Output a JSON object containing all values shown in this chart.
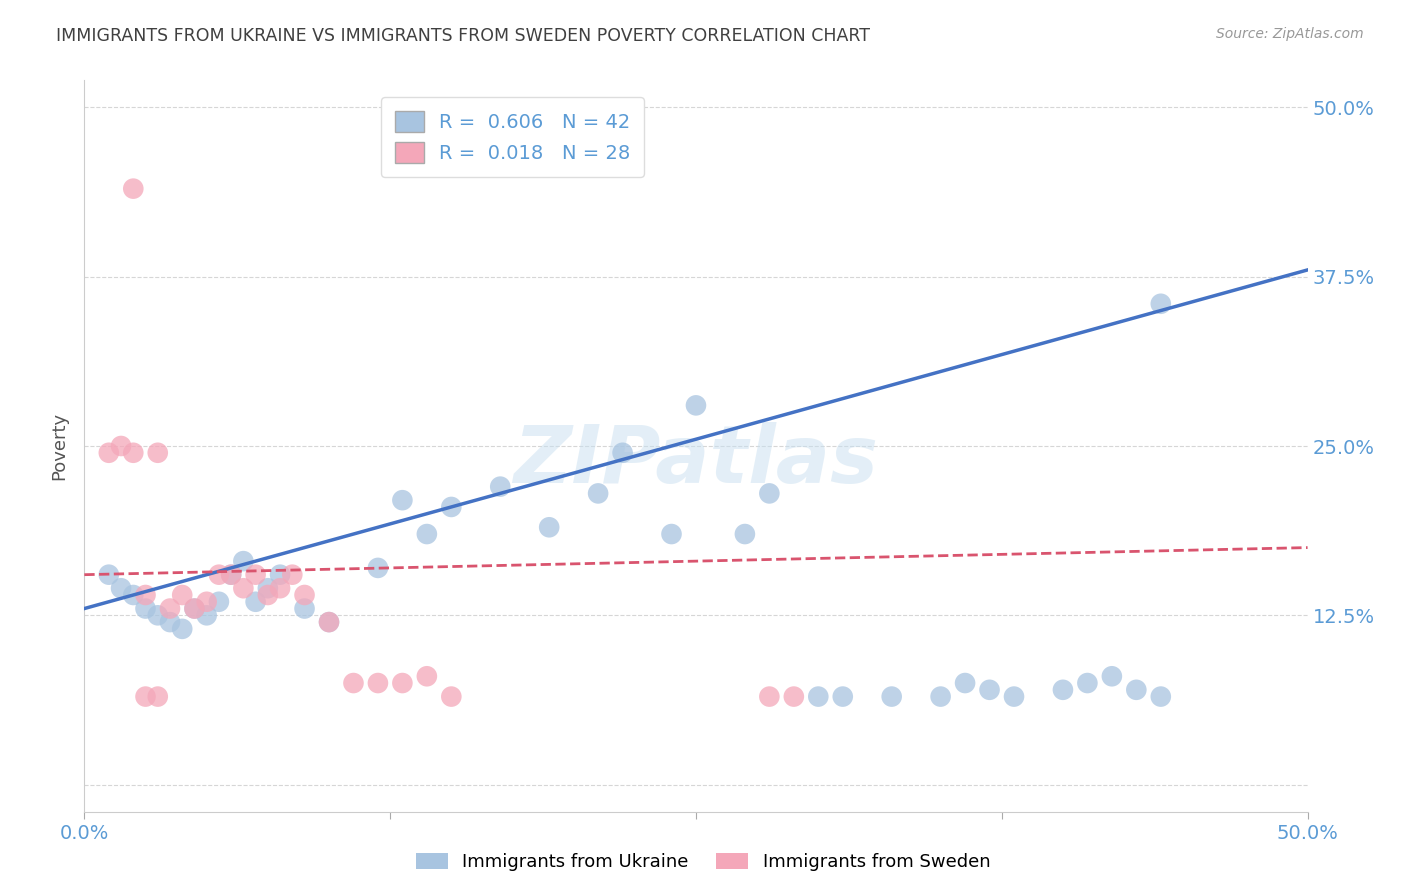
{
  "title": "IMMIGRANTS FROM UKRAINE VS IMMIGRANTS FROM SWEDEN POVERTY CORRELATION CHART",
  "source": "Source: ZipAtlas.com",
  "ylabel": "Poverty",
  "ukraine_color": "#a8c4e0",
  "ukraine_color_dark": "#4472c4",
  "sweden_color": "#f4a7b9",
  "sweden_color_dark": "#d9546e",
  "ukraine_R": 0.606,
  "ukraine_N": 42,
  "sweden_R": 0.018,
  "sweden_N": 28,
  "ukraine_line_x0": 0.0,
  "ukraine_line_y0": 0.13,
  "ukraine_line_x1": 0.5,
  "ukraine_line_y1": 0.38,
  "sweden_line_x0": 0.0,
  "sweden_line_y0": 0.155,
  "sweden_line_x1": 0.5,
  "sweden_line_y1": 0.175,
  "ukraine_x": [
    0.44,
    0.01,
    0.015,
    0.02,
    0.025,
    0.03,
    0.035,
    0.04,
    0.045,
    0.05,
    0.055,
    0.06,
    0.065,
    0.07,
    0.075,
    0.08,
    0.09,
    0.1,
    0.12,
    0.13,
    0.14,
    0.15,
    0.17,
    0.19,
    0.21,
    0.22,
    0.24,
    0.25,
    0.27,
    0.28,
    0.3,
    0.31,
    0.33,
    0.35,
    0.36,
    0.37,
    0.38,
    0.4,
    0.41,
    0.42,
    0.43,
    0.44
  ],
  "ukraine_y": [
    0.355,
    0.155,
    0.145,
    0.14,
    0.13,
    0.125,
    0.12,
    0.115,
    0.13,
    0.125,
    0.135,
    0.155,
    0.165,
    0.135,
    0.145,
    0.155,
    0.13,
    0.12,
    0.16,
    0.21,
    0.185,
    0.205,
    0.22,
    0.19,
    0.215,
    0.245,
    0.185,
    0.28,
    0.185,
    0.215,
    0.065,
    0.065,
    0.065,
    0.065,
    0.075,
    0.07,
    0.065,
    0.07,
    0.075,
    0.08,
    0.07,
    0.065
  ],
  "sweden_x": [
    0.02,
    0.01,
    0.015,
    0.02,
    0.025,
    0.03,
    0.035,
    0.04,
    0.045,
    0.05,
    0.055,
    0.06,
    0.065,
    0.07,
    0.075,
    0.08,
    0.085,
    0.09,
    0.1,
    0.11,
    0.12,
    0.13,
    0.14,
    0.15,
    0.025,
    0.03,
    0.28,
    0.29
  ],
  "sweden_y": [
    0.44,
    0.245,
    0.25,
    0.245,
    0.14,
    0.245,
    0.13,
    0.14,
    0.13,
    0.135,
    0.155,
    0.155,
    0.145,
    0.155,
    0.14,
    0.145,
    0.155,
    0.14,
    0.12,
    0.075,
    0.075,
    0.075,
    0.08,
    0.065,
    0.065,
    0.065,
    0.065,
    0.065
  ],
  "watermark": "ZIPatlas",
  "background_color": "#ffffff",
  "grid_color": "#cccccc",
  "tick_label_color": "#5b9bd5",
  "title_color": "#404040",
  "legend_ukraine_label": "Immigrants from Ukraine",
  "legend_sweden_label": "Immigrants from Sweden",
  "xlim": [
    0.0,
    0.5
  ],
  "ylim": [
    -0.02,
    0.52
  ],
  "ytick_vals": [
    0.0,
    0.125,
    0.25,
    0.375,
    0.5
  ],
  "ytick_labels": [
    "",
    "12.5%",
    "25.0%",
    "37.5%",
    "50.0%"
  ],
  "xtick_vals": [
    0.0,
    0.125,
    0.25,
    0.375,
    0.5
  ],
  "xtick_labels": [
    "0.0%",
    "",
    "",
    "",
    "50.0%"
  ]
}
